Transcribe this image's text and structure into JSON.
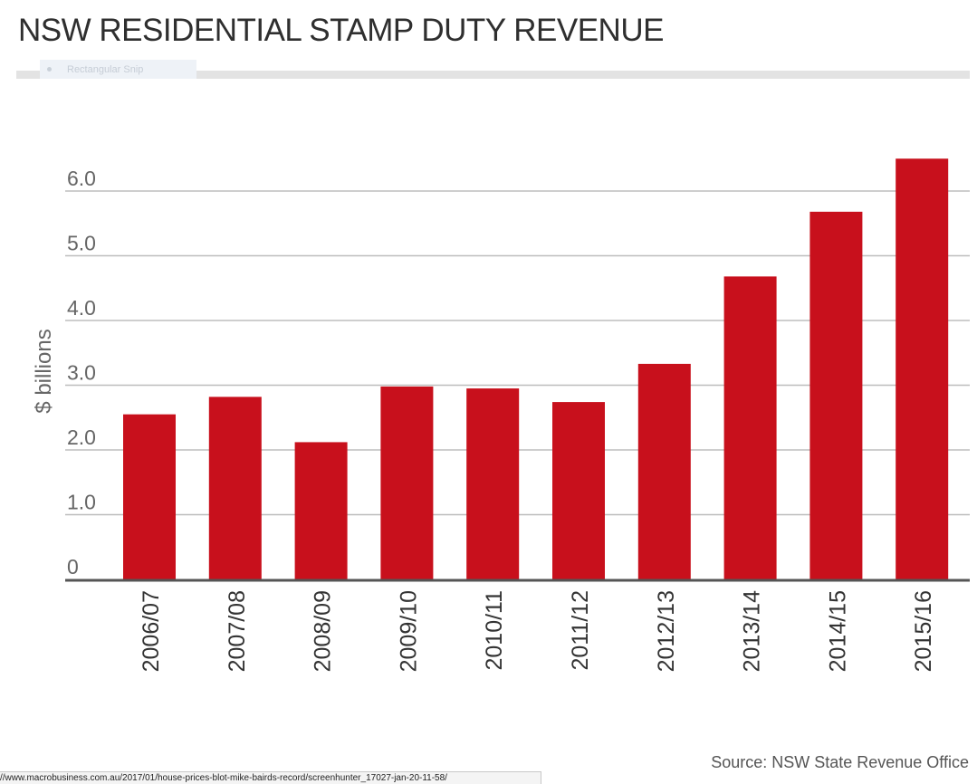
{
  "chart_data": {
    "type": "bar",
    "title": "NSW RESIDENTIAL STAMP DUTY REVENUE",
    "ylabel": "$ billions",
    "categories": [
      "2006/07",
      "2007/08",
      "2008/09",
      "2009/10",
      "2010/11",
      "2011/12",
      "2012/13",
      "2013/14",
      "2014/15",
      "2015/16"
    ],
    "values": [
      2.55,
      2.82,
      2.12,
      2.98,
      2.95,
      2.74,
      3.33,
      4.68,
      5.68,
      6.5
    ],
    "yticks": [
      0,
      1,
      2,
      3,
      4,
      5,
      6
    ],
    "ytick_labels": [
      "0",
      "1.0",
      "2.0",
      "3.0",
      "4.0",
      "5.0",
      "6.0"
    ],
    "ylim": [
      0,
      6.5
    ],
    "grid": true,
    "bar_color": "#c8101c",
    "source": "Source: NSW State Revenue Office"
  },
  "overlay": {
    "snip_label": "Rectangular Snip",
    "status_url": "//www.macrobusiness.com.au/2017/01/house-prices-blot-mike-bairds-record/screenhunter_17027-jan-20-11-58/"
  }
}
